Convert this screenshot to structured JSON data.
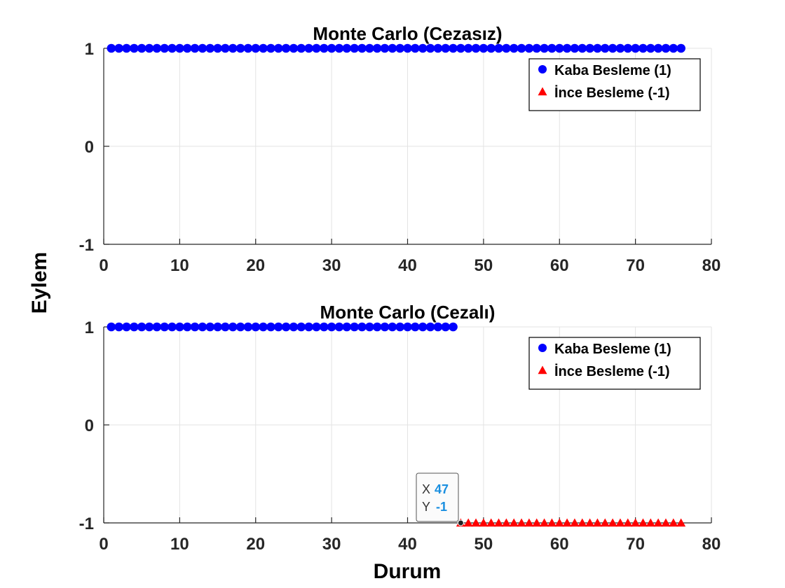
{
  "figure": {
    "ylabel": "Eylem",
    "xlabel": "Durum"
  },
  "chart_data": [
    {
      "type": "scatter",
      "title": "Monte Carlo (Cezasız)",
      "xlim": [
        0,
        80
      ],
      "ylim": [
        -1,
        1
      ],
      "xticks": [
        "0",
        "10",
        "20",
        "30",
        "40",
        "50",
        "60",
        "70",
        "80"
      ],
      "yticks": [
        "-1",
        "0",
        "1"
      ],
      "grid": true,
      "legend_position": "top-right",
      "series": [
        {
          "name": "Kaba Besleme (1)",
          "marker": "circle",
          "color": "#0000ff",
          "x_start": 1,
          "x_end": 76,
          "y": 1
        },
        {
          "name": "İnce Besleme (-1)",
          "marker": "triangle",
          "color": "#ff0000",
          "x_start": null,
          "x_end": null,
          "y": -1
        }
      ]
    },
    {
      "type": "scatter",
      "title": "Monte Carlo (Cezalı)",
      "xlim": [
        0,
        80
      ],
      "ylim": [
        -1,
        1
      ],
      "xticks": [
        "0",
        "10",
        "20",
        "30",
        "40",
        "50",
        "60",
        "70",
        "80"
      ],
      "yticks": [
        "-1",
        "0",
        "1"
      ],
      "grid": true,
      "legend_position": "top-right",
      "series": [
        {
          "name": "Kaba Besleme (1)",
          "marker": "circle",
          "color": "#0000ff",
          "x_start": 1,
          "x_end": 46,
          "y": 1
        },
        {
          "name": "İnce Besleme (-1)",
          "marker": "triangle",
          "color": "#ff0000",
          "x_start": 47,
          "x_end": 76,
          "y": -1
        }
      ],
      "datatip": {
        "x_label": "X",
        "x_value": "47",
        "y_label": "Y",
        "y_value": "-1",
        "at_x": 47,
        "at_y": -1
      }
    }
  ]
}
